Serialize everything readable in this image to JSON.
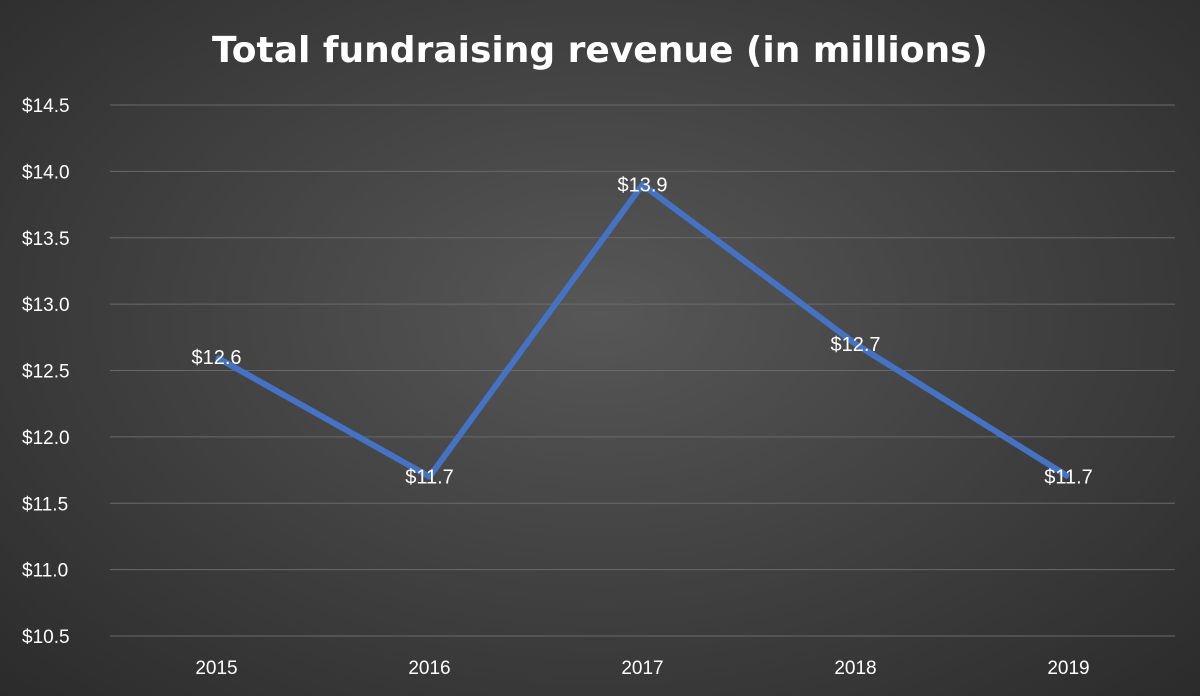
{
  "chart_data": {
    "type": "line",
    "title": "Total fundraising revenue (in millions)",
    "xlabel": "",
    "ylabel": "",
    "categories": [
      "2015",
      "2016",
      "2017",
      "2018",
      "2019"
    ],
    "series": [
      {
        "values": [
          12.6,
          11.7,
          13.9,
          12.7,
          11.7
        ],
        "data_labels": [
          "$12.6",
          "$11.7",
          "$13.9",
          "$12.7",
          "$11.7"
        ]
      }
    ],
    "ylim": [
      10.5,
      14.5
    ],
    "yticks": [
      10.5,
      11.0,
      11.5,
      12.0,
      12.5,
      13.0,
      13.5,
      14.0,
      14.5
    ],
    "ytick_labels": [
      "$10.5",
      "$11.0",
      "$11.5",
      "$12.0",
      "$12.5",
      "$13.0",
      "$13.5",
      "$14.0",
      "$14.5"
    ],
    "grid": true,
    "legend": "none",
    "colors": {
      "line": "#4472C4",
      "grid": "#6a6a6a",
      "text": "#ffffff"
    }
  }
}
